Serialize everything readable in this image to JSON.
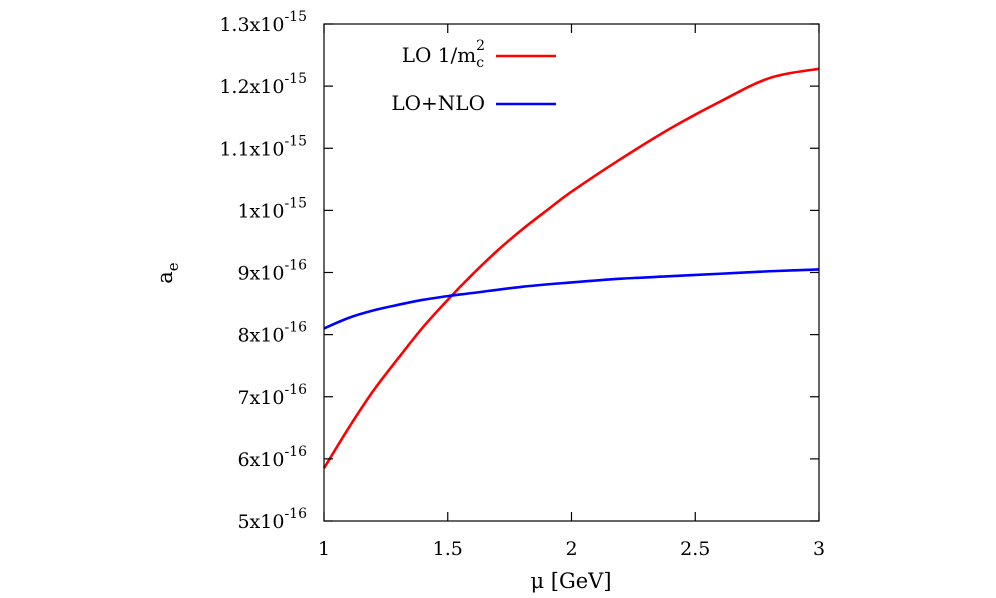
{
  "chart_data": {
    "type": "line",
    "xlabel_symbol": "μ",
    "xlabel_unit": "[GeV]",
    "ylabel_base": "a",
    "ylabel_sub": "e",
    "xlim": [
      1,
      3
    ],
    "ylim": [
      5e-16,
      1.3e-15
    ],
    "x_ticks": [
      {
        "value": 1,
        "label": "1"
      },
      {
        "value": 1.5,
        "label": "1.5"
      },
      {
        "value": 2,
        "label": "2"
      },
      {
        "value": 2.5,
        "label": "2.5"
      },
      {
        "value": 3,
        "label": "3"
      }
    ],
    "y_ticks": [
      {
        "value": 5e-16,
        "mantissa": "5x10",
        "exp": "-16"
      },
      {
        "value": 6e-16,
        "mantissa": "6x10",
        "exp": "-16"
      },
      {
        "value": 7e-16,
        "mantissa": "7x10",
        "exp": "-16"
      },
      {
        "value": 8e-16,
        "mantissa": "8x10",
        "exp": "-16"
      },
      {
        "value": 9e-16,
        "mantissa": "9x10",
        "exp": "-16"
      },
      {
        "value": 1e-15,
        "mantissa": "1x10",
        "exp": "-15"
      },
      {
        "value": 1.1e-15,
        "mantissa": "1.1x10",
        "exp": "-15"
      },
      {
        "value": 1.2e-15,
        "mantissa": "1.2x10",
        "exp": "-15"
      },
      {
        "value": 1.3e-15,
        "mantissa": "1.3x10",
        "exp": "-15"
      }
    ],
    "grid": false,
    "legend_position": "top-left",
    "series": [
      {
        "name": "LO 1/m",
        "name_sub": "c",
        "name_sup": "2",
        "color": "#ff0000",
        "x": [
          1.0,
          1.1,
          1.2,
          1.3,
          1.4,
          1.5,
          1.6,
          1.7,
          1.8,
          1.9,
          2.0,
          2.2,
          2.4,
          2.6,
          2.8,
          3.0
        ],
        "y": [
          5.85e-16,
          6.5e-16,
          7.1e-16,
          7.62e-16,
          8.12e-16,
          8.56e-16,
          8.97e-16,
          9.35e-16,
          9.69e-16,
          1e-15,
          1.03e-15,
          1.083e-15,
          1.132e-15,
          1.175e-15,
          1.213e-15,
          1.228e-15
        ]
      },
      {
        "name": "LO+NLO",
        "color": "#0000ff",
        "x": [
          1.0,
          1.1,
          1.2,
          1.3,
          1.4,
          1.5,
          1.6,
          1.8,
          2.0,
          2.2,
          2.4,
          2.6,
          2.8,
          3.0
        ],
        "y": [
          8.1e-16,
          8.27e-16,
          8.39e-16,
          8.48e-16,
          8.56e-16,
          8.62e-16,
          8.67e-16,
          8.77e-16,
          8.84e-16,
          8.9e-16,
          8.94e-16,
          8.98e-16,
          9.02e-16,
          9.05e-16
        ]
      }
    ]
  }
}
